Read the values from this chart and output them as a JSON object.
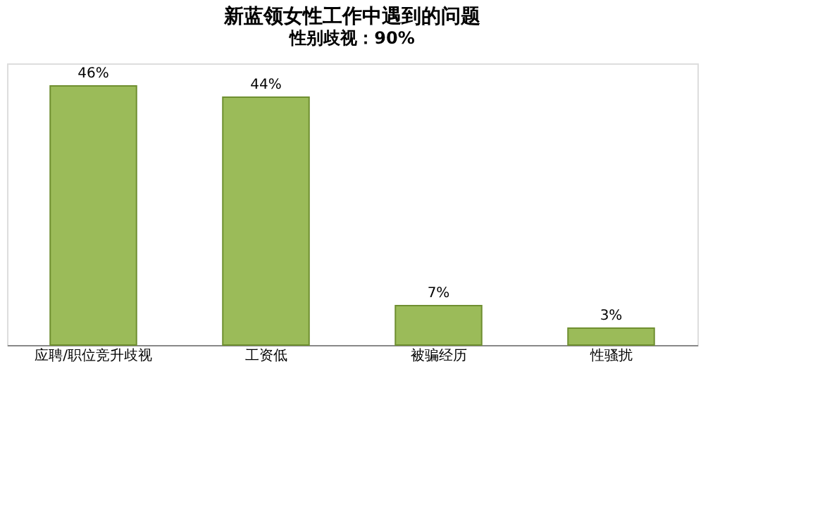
{
  "chart_data": {
    "type": "bar",
    "title": "新蓝领女性工作中遇到的问题",
    "categories": [
      "应聘/职位竞升歧视",
      "工资低",
      "被骗经历",
      "性骚扰"
    ],
    "values": [
      46,
      44,
      7,
      3
    ],
    "color": "#9bbb59",
    "data_labels": true,
    "value_labels": [
      "46%",
      "44%",
      "7%",
      "3%"
    ],
    "annotations": [
      "性别歧视：90%"
    ],
    "grid": false
  }
}
